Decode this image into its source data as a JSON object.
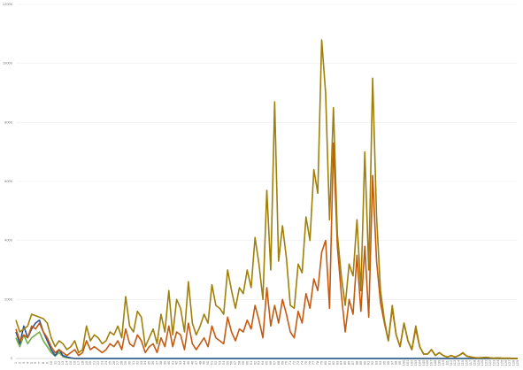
{
  "chart_data": {
    "type": "line",
    "categories": [
      1,
      2,
      3,
      4,
      5,
      6,
      7,
      8,
      9,
      10,
      11,
      12,
      13,
      14,
      15,
      16,
      17,
      18,
      19,
      20,
      21,
      22,
      23,
      24,
      25,
      26,
      27,
      28,
      29,
      30,
      31,
      32,
      33,
      34,
      35,
      36,
      37,
      38,
      39,
      40,
      41,
      42,
      43,
      44,
      45,
      46,
      47,
      48,
      49,
      50,
      51,
      52,
      53,
      54,
      55,
      56,
      57,
      58,
      59,
      60,
      61,
      62,
      63,
      64,
      65,
      66,
      67,
      68,
      69,
      70,
      71,
      72,
      73,
      74,
      75,
      76,
      77,
      78,
      79,
      80,
      81,
      82,
      83,
      84,
      85,
      86,
      87,
      88,
      89,
      90,
      91,
      92,
      93,
      94,
      95,
      96,
      97,
      98,
      99,
      100,
      101,
      102,
      103,
      104,
      105,
      106,
      107,
      108,
      109,
      110,
      111,
      112,
      113,
      114,
      115,
      116,
      117,
      118,
      119,
      120,
      121,
      122,
      123,
      124,
      125,
      126,
      127,
      128,
      129
    ],
    "series": [
      {
        "color": "#a0800a",
        "values": [
          1300,
          900,
          1000,
          1100,
          1500,
          1450,
          1400,
          1350,
          1200,
          700,
          400,
          600,
          500,
          300,
          400,
          600,
          200,
          300,
          1100,
          600,
          800,
          700,
          500,
          600,
          900,
          800,
          1100,
          700,
          2100,
          1100,
          900,
          1600,
          1400,
          400,
          700,
          1000,
          500,
          1500,
          900,
          2300,
          800,
          2000,
          1700,
          900,
          2600,
          1200,
          800,
          1100,
          1500,
          1200,
          2500,
          1800,
          1700,
          1500,
          3000,
          2300,
          1700,
          2400,
          2200,
          3000,
          2400,
          4100,
          3200,
          2000,
          5700,
          3000,
          8700,
          3300,
          4500,
          3400,
          1800,
          1700,
          3200,
          2900,
          4800,
          4000,
          6400,
          5600,
          10800,
          9000,
          4700,
          8500,
          4200,
          2800,
          1800,
          3200,
          2800,
          4700,
          2300,
          7000,
          3000,
          9500,
          4800,
          2300,
          1300,
          600,
          1800,
          800,
          400,
          1200,
          600,
          300,
          1100,
          400,
          150,
          150,
          300,
          100,
          200,
          100,
          50,
          100,
          50,
          100,
          200,
          80,
          50,
          30,
          20,
          30,
          40,
          20,
          10,
          20,
          10,
          10,
          10,
          0,
          0
        ]
      },
      {
        "color": "#c55a11",
        "values": [
          1000,
          600,
          800,
          700,
          1100,
          1000,
          1200,
          900,
          700,
          400,
          200,
          300,
          200,
          100,
          200,
          300,
          100,
          200,
          600,
          300,
          400,
          300,
          200,
          300,
          500,
          400,
          600,
          300,
          1000,
          500,
          400,
          800,
          600,
          200,
          400,
          500,
          200,
          700,
          400,
          1100,
          400,
          900,
          800,
          300,
          1200,
          500,
          300,
          500,
          700,
          400,
          1100,
          700,
          600,
          500,
          1400,
          900,
          600,
          1000,
          900,
          1300,
          1000,
          1800,
          1300,
          700,
          2400,
          1100,
          1800,
          1200,
          2000,
          1500,
          900,
          700,
          1600,
          1200,
          2200,
          1700,
          2700,
          2300,
          3600,
          4000,
          1700,
          7300,
          3800,
          2200,
          900,
          2000,
          1500,
          3500,
          1600,
          3800,
          1400,
          6200,
          3300,
          1900,
          1200,
          600,
          1700,
          800,
          400,
          1200,
          600,
          300,
          1000,
          400,
          150,
          150,
          300,
          100,
          200,
          100,
          50,
          100,
          50,
          100,
          180,
          80,
          50,
          30,
          20,
          30,
          40,
          20,
          10,
          20,
          10,
          10,
          10,
          0,
          0
        ]
      },
      {
        "color": "#2e5597",
        "values": [
          900,
          500,
          1100,
          700,
          1000,
          1200,
          1300,
          900,
          600,
          300,
          100,
          300,
          100,
          50,
          20,
          0,
          0,
          0,
          0,
          0,
          0,
          0,
          0,
          0,
          0,
          0,
          0,
          0,
          0,
          0,
          0,
          0,
          0,
          0,
          0,
          0,
          0,
          0,
          0,
          0,
          0,
          0,
          0,
          0,
          0,
          0,
          0,
          0,
          0,
          0,
          0,
          0,
          0,
          0,
          0,
          0,
          0,
          0,
          0,
          0,
          0,
          0,
          0,
          0,
          0,
          0,
          0,
          0,
          0,
          0,
          0,
          0,
          0,
          0,
          0,
          0,
          0,
          0,
          0,
          0,
          0,
          0,
          0,
          0,
          0,
          0,
          0,
          0,
          0,
          0,
          0,
          0,
          0,
          0,
          0,
          0,
          0,
          0,
          0,
          0,
          0,
          0,
          0,
          0,
          0,
          0,
          0,
          0,
          0,
          0,
          0,
          0,
          0,
          0,
          0,
          0,
          0,
          0,
          0,
          0,
          0,
          0,
          0,
          0,
          0,
          0,
          0,
          0,
          0
        ]
      },
      {
        "color": "#70ad47",
        "values": [
          700,
          400,
          800,
          500,
          700,
          800,
          900,
          600,
          400,
          200,
          80,
          200,
          60,
          30,
          10,
          0,
          0,
          0,
          0,
          0,
          0,
          0,
          0,
          0,
          0,
          0,
          0,
          0,
          0,
          0,
          0,
          0,
          0,
          0,
          0,
          0,
          0,
          0,
          0,
          0,
          0,
          0,
          0,
          0,
          0,
          0,
          0,
          0,
          0,
          0,
          0,
          0,
          0,
          0,
          0,
          0,
          0,
          0,
          0,
          0,
          0,
          0,
          0,
          0,
          0,
          0,
          0,
          0,
          0,
          0,
          0,
          0,
          0,
          0,
          0,
          0,
          0,
          0,
          0,
          0,
          0,
          0,
          0,
          0,
          0,
          0,
          0,
          0,
          0,
          0,
          0,
          0,
          0,
          0,
          0,
          0,
          0,
          0,
          0,
          0,
          0,
          0,
          0,
          0,
          0,
          0,
          0,
          0,
          0,
          0,
          0,
          0,
          0,
          0,
          0,
          0,
          0,
          0,
          0,
          0,
          0,
          0,
          0,
          0,
          0,
          0,
          0,
          0,
          0
        ]
      }
    ],
    "ylim": [
      0,
      12000
    ],
    "yticks": [
      0,
      2000,
      4000,
      6000,
      8000,
      10000,
      12000
    ],
    "grid": true
  }
}
